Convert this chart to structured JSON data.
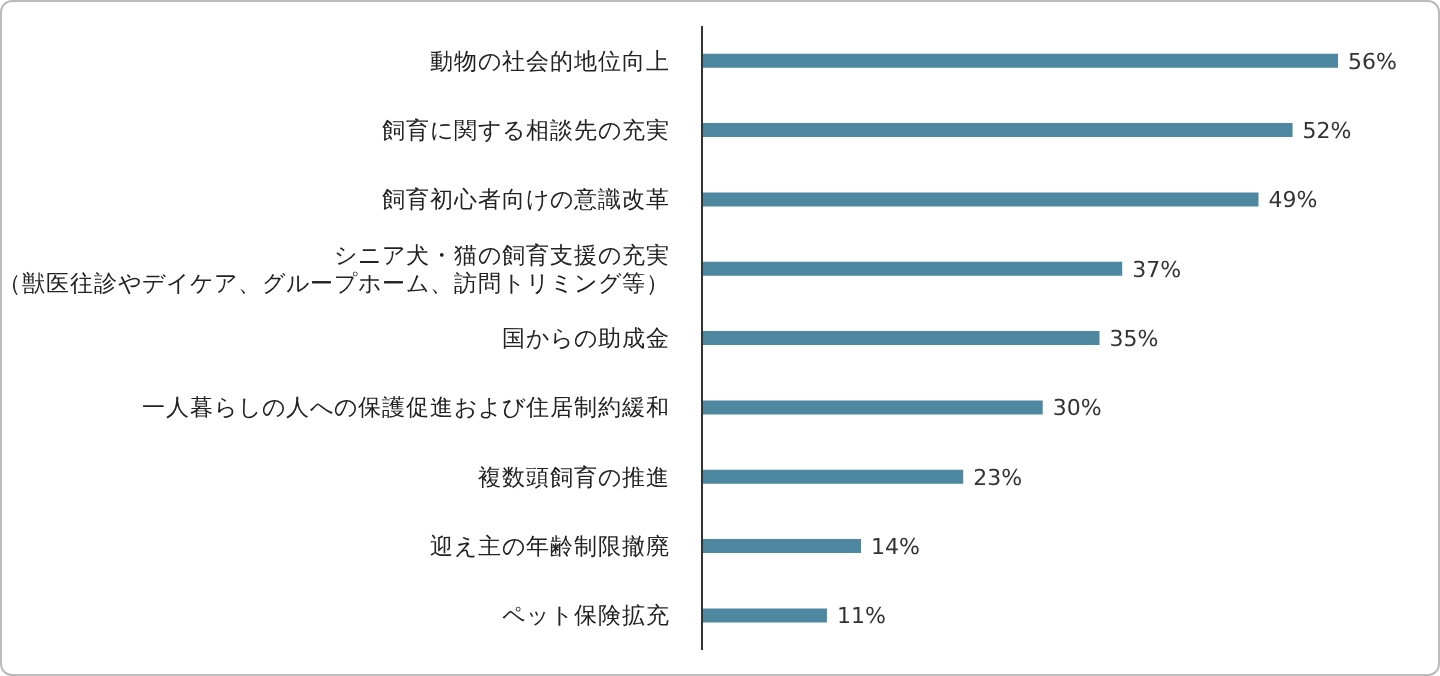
{
  "chart_data": {
    "type": "bar",
    "orientation": "horizontal",
    "categories": [
      "動物の社会的地位向上",
      "飼育に関する相談先の充実",
      "飼育初心者向けの意識改革",
      "シニア犬・猫の飼育支援の充実（獣医往診やデイケア、グループホーム、訪問トリミング等）",
      "国からの助成金",
      "一人暮らしの人への保護促進および住居制約緩和",
      "複数頭飼育の推進",
      "迎え主の年齢制限撤廃",
      "ペット保険拡充"
    ],
    "values": [
      56,
      52,
      49,
      37,
      35,
      30,
      23,
      14,
      11
    ],
    "value_labels": [
      "56%",
      "52%",
      "49%",
      "37%",
      "35%",
      "30%",
      "23%",
      "14%",
      "11%"
    ],
    "color": "#4e87a0"
  }
}
